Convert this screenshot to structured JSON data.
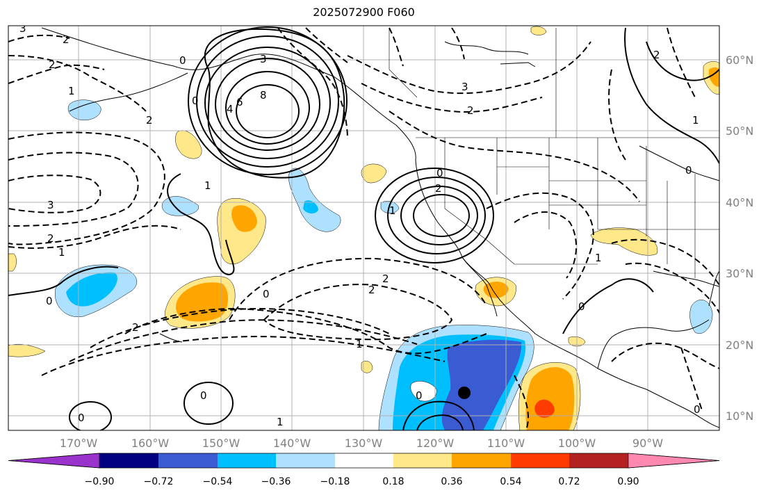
{
  "title": "2025072900 F060",
  "lat_labels": [
    "60°N",
    "50°N",
    "40°N",
    "30°N",
    "20°N",
    "10°N"
  ],
  "lon_labels": [
    "170°W",
    "160°W",
    "150°W",
    "140°W",
    "130°W",
    "120°W",
    "110°W",
    "100°W",
    "90°W"
  ],
  "colorbar": {
    "ticks": [
      "−0.90",
      "−0.72",
      "−0.54",
      "−0.36",
      "−0.18",
      "0.18",
      "0.36",
      "0.54",
      "0.72",
      "0.90"
    ],
    "colors": [
      "#9933cc",
      "#000080",
      "#3a5bd1",
      "#00bfff",
      "#aee0ff",
      "#ffffff",
      "#ffe88a",
      "#ffa500",
      "#ff3c00",
      "#b22222",
      "#ff88b0"
    ]
  },
  "contour_labels": [
    "3",
    "2",
    "2",
    "1",
    "2",
    "3",
    "2",
    "1",
    "0",
    "1",
    "0",
    "3",
    "8",
    "6",
    "4",
    "0",
    "1",
    "0",
    "2",
    "0",
    "2",
    "2",
    "2",
    "1",
    "0",
    "3",
    "2",
    "1",
    "2",
    "1",
    "0",
    "0",
    "0",
    "0",
    "1",
    "0"
  ]
}
